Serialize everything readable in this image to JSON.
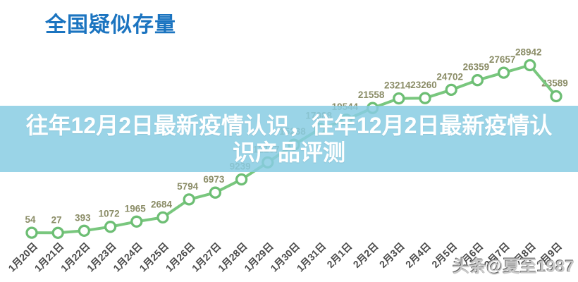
{
  "header": {
    "title": "全国疑似存量",
    "title_color": "#1b74c0"
  },
  "overlay": {
    "line1": "往年12月2日最新疫情认识，往年12月2日最新疫情认",
    "line2": "识产品评测",
    "background": "#88cde3",
    "text_color": "#ffffff"
  },
  "watermark": {
    "text": "头条@夏至1987"
  },
  "chart_data": {
    "type": "line",
    "title": "全国疑似存量",
    "categories": [
      "1月20日",
      "1月21日",
      "1月22日",
      "1月23日",
      "1月24日",
      "1月25日",
      "1月26日",
      "1月27日",
      "1月28日",
      "1月29日",
      "1月30日",
      "1月31日",
      "2月1日",
      "2月2日",
      "2月3日",
      "2月4日",
      "2月5日",
      "2月6日",
      "2月7日",
      "2月8日",
      "2月9日"
    ],
    "values": [
      54,
      27,
      393,
      1072,
      1965,
      2684,
      5794,
      6973,
      9239,
      12167,
      15238,
      17988,
      19544,
      21558,
      23214,
      23260,
      24702,
      26359,
      27657,
      28942,
      23589
    ],
    "xlabel": "",
    "ylabel": "",
    "ylim": [
      0,
      30000
    ],
    "grid": false,
    "legend": "none",
    "point_labels_shown": true,
    "line_color": "#79c77e",
    "point_fill": "#ffffff",
    "point_stroke": "#6dbe74",
    "value_label_color": "#8a8c66",
    "axis_label_color": "#4a4a4a"
  }
}
